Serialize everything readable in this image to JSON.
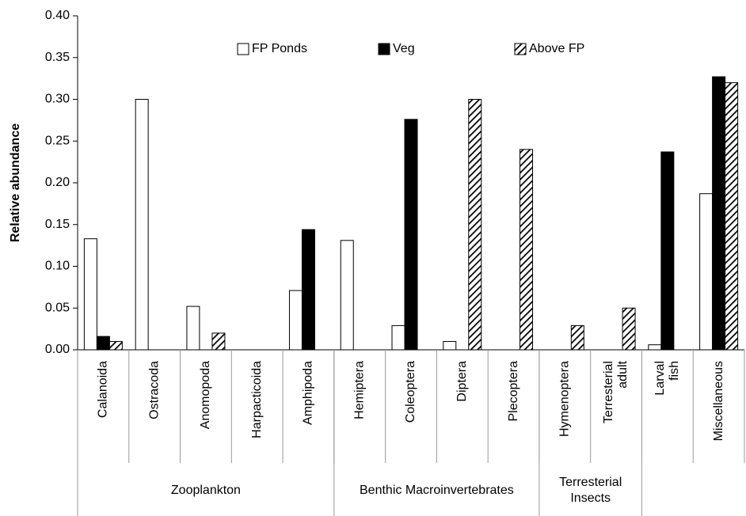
{
  "chart_data": {
    "type": "bar",
    "y_label": "Relative abundance",
    "categories": [
      "Calanoida",
      "Ostracoda",
      "Anomopoda",
      "Harpacticoida",
      "Amphipoda",
      "Hemiptera",
      "Coleoptera",
      "Diptera",
      "Plecoptera",
      "Hymenoptera",
      "Terresterial adult",
      "Larval fish",
      "Miscellaneous"
    ],
    "groups": [
      {
        "name": "Zooplankton",
        "span": 5
      },
      {
        "name": "Benthic Macroinvertebrates",
        "span": 4
      },
      {
        "name": "Terresterial Insects",
        "span": 2
      },
      {
        "name": null,
        "span": 1
      },
      {
        "name": null,
        "span": 1
      }
    ],
    "series": [
      {
        "name": "FP Ponds",
        "color": "#ffffff",
        "pattern": "solid",
        "values": [
          0.133,
          0.3,
          0.052,
          0,
          0.071,
          0.131,
          0.029,
          0.01,
          0,
          0,
          0,
          0.006,
          0.187
        ]
      },
      {
        "name": "Veg",
        "color": "#000000",
        "pattern": "solid",
        "values": [
          0.016,
          0,
          0,
          0,
          0.144,
          0,
          0.276,
          0,
          0,
          0,
          0,
          0.237,
          0.327
        ]
      },
      {
        "name": "Above FP",
        "color": "#000000",
        "pattern": "hatch",
        "values": [
          0.01,
          0,
          0.02,
          0,
          0,
          0,
          0,
          0.3,
          0.24,
          0.029,
          0.05,
          0,
          0.32
        ]
      }
    ],
    "ylim": [
      0,
      0.4
    ],
    "yticks": [
      {
        "value": 0,
        "label": "0.00"
      },
      0.05,
      {
        "value": 0.1,
        "label": "0.10"
      },
      0.15,
      {
        "value": 0.2,
        "label": "0.20"
      },
      0.25,
      {
        "value": 0.3,
        "label": "0.30"
      },
      0.35,
      {
        "value": 0.4,
        "label": "0.40"
      }
    ],
    "grid": false,
    "legend_position": "top"
  }
}
